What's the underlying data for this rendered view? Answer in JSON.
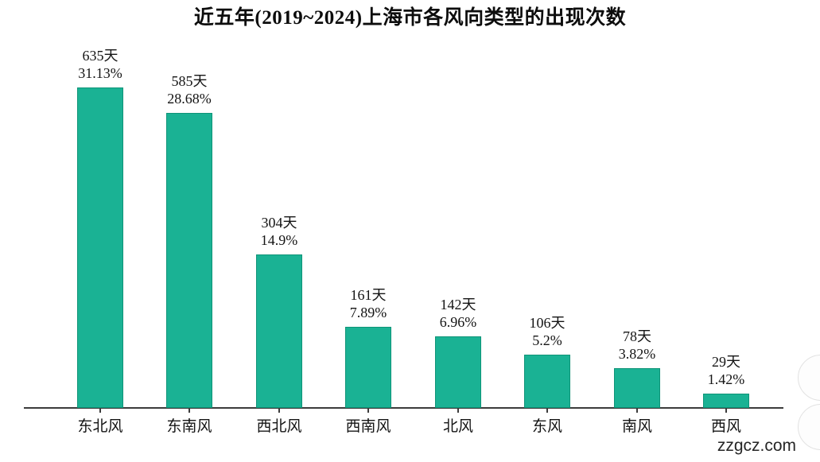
{
  "title": "近五年(2019~2024)上海市各风向类型的出现次数",
  "watermark": "zzgcz.com",
  "chart_data": {
    "type": "bar",
    "title": "近五年(2019~2024)上海市各风向类型的出现次数",
    "categories": [
      "东北风",
      "东南风",
      "西北风",
      "西南风",
      "北风",
      "东风",
      "南风",
      "西风"
    ],
    "values": [
      635,
      585,
      304,
      161,
      142,
      106,
      78,
      29
    ],
    "value_unit": "天",
    "value_labels": [
      "635天",
      "585天",
      "304天",
      "161天",
      "142天",
      "106天",
      "78天",
      "29天"
    ],
    "percent_labels": [
      "31.13%",
      "28.68%",
      "14.9%",
      "7.89%",
      "6.96%",
      "5.2%",
      "3.82%",
      "1.42%"
    ],
    "xlabel": "",
    "ylabel": "",
    "ylim": [
      0,
      635
    ],
    "grid": false,
    "legend": "none",
    "bar_color": "#1ab294",
    "bar_border_color": "#0f9478",
    "axis_color": "#3c3c3c",
    "text_color": "#141414"
  }
}
